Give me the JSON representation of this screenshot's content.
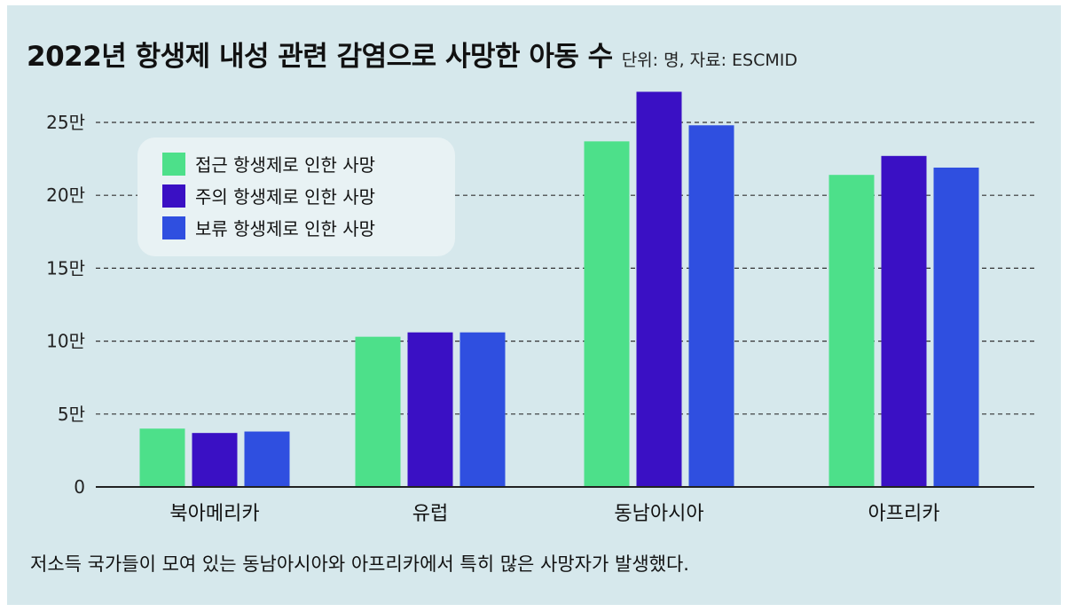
{
  "title": "2022년 항생제 내성 관련 감염으로 사망한 아동 수",
  "unit_note": "단위: 명, 자료: ESCMID",
  "caption": "저소득 국가들이 모여 있는 동남아시아와 아프리카에서 특히 많은 사망자가 발생했다.",
  "chart_data": {
    "type": "bar",
    "categories": [
      "북아메리카",
      "유럽",
      "동남아시아",
      "아프리카"
    ],
    "series": [
      {
        "name": "접근 항생제로 인한 사망",
        "color": "#4de08a",
        "values": [
          40000,
          103000,
          237000,
          214000
        ]
      },
      {
        "name": "주의 항생제로 인한 사망",
        "color": "#3a10c4",
        "values": [
          37000,
          106000,
          271000,
          227000
        ]
      },
      {
        "name": "보류 항생제로 인한 사망",
        "color": "#2f4fe0",
        "values": [
          38000,
          106000,
          248000,
          219000
        ]
      }
    ],
    "ylim": [
      0,
      250000
    ],
    "yticks": [
      0,
      50000,
      100000,
      150000,
      200000,
      250000
    ],
    "ytick_labels": [
      "0",
      "5만",
      "10만",
      "15만",
      "20만",
      "25만"
    ],
    "grid": true,
    "legend_position": "top-left"
  }
}
